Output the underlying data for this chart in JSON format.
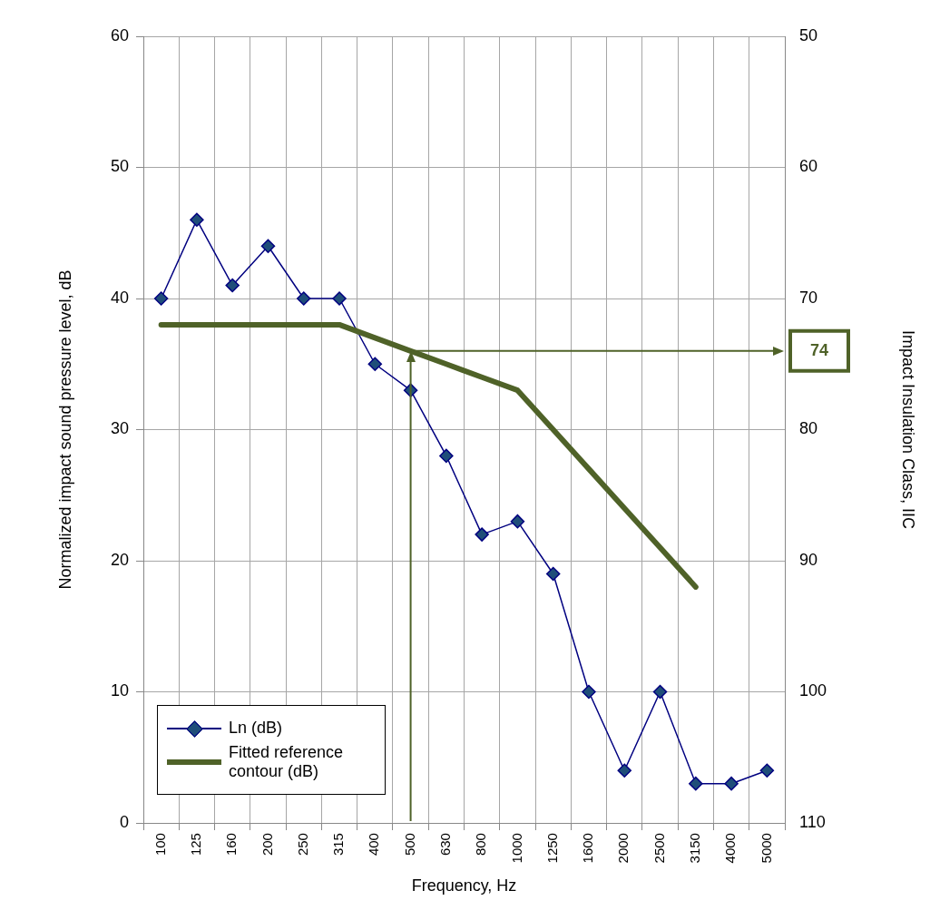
{
  "chart_data": {
    "type": "line",
    "categories": [
      "100",
      "125",
      "160",
      "200",
      "250",
      "315",
      "400",
      "500",
      "630",
      "800",
      "1000",
      "1250",
      "1600",
      "2000",
      "2500",
      "3150",
      "4000",
      "5000"
    ],
    "series": [
      {
        "name": "Ln (dB)",
        "color": "#000080",
        "marker": "diamond",
        "values": [
          40,
          46,
          41,
          44,
          40,
          40,
          35,
          33,
          28,
          22,
          23,
          19,
          10,
          4,
          10,
          3,
          3,
          4
        ]
      },
      {
        "name": "Fitted reference contour (dB)",
        "color": "#4f6228",
        "marker": "none",
        "values": [
          38,
          38,
          38,
          38,
          38,
          38,
          37,
          36,
          35,
          34,
          33,
          30,
          27,
          24,
          21,
          18,
          null,
          null
        ]
      }
    ],
    "xlabel": "Frequency, Hz",
    "ylabel": "Normalized impact sound pressure level, dB",
    "y2label": "Impact Insulation Class, IIC",
    "ylim": [
      0,
      60
    ],
    "yticks": [
      0,
      10,
      20,
      30,
      40,
      50,
      60
    ],
    "y2lim": [
      110,
      50
    ],
    "y2ticks": [
      50,
      60,
      70,
      80,
      90,
      100,
      110
    ],
    "ref_lines": [
      {
        "axis": "x",
        "value": "500"
      },
      {
        "axis": "y2",
        "value": 74,
        "label": "74"
      }
    ],
    "grid": true,
    "legend": "bottom left",
    "line_style": "solid"
  }
}
